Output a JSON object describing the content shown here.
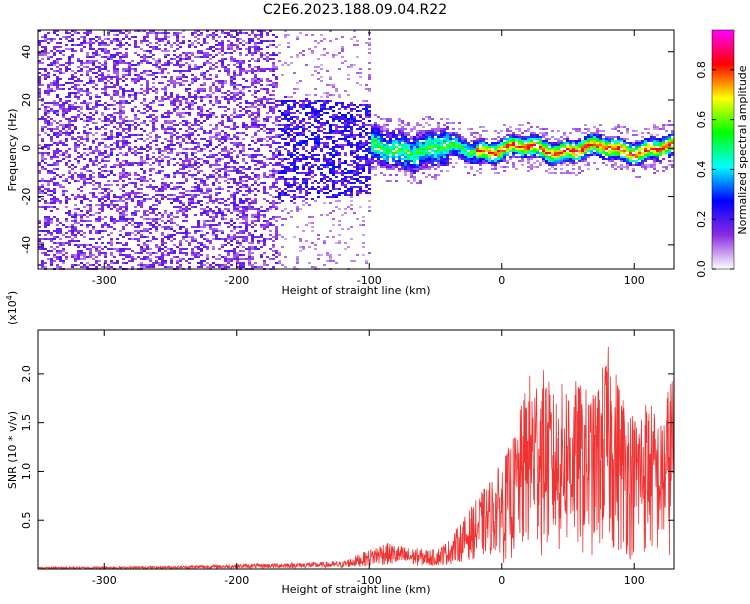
{
  "title": "C2E6.2023.188.09.04.R22",
  "chart_data": [
    {
      "type": "heatmap",
      "title": "C2E6.2023.188.09.04.R22",
      "xlabel": "Height of straight line (km)",
      "ylabel": "Frequency (Hz)",
      "xlim": [
        -350,
        130
      ],
      "ylim": [
        -50,
        49
      ],
      "xticks": [
        -300,
        -200,
        -100,
        0,
        100
      ],
      "yticks": [
        -40,
        -20,
        0,
        20,
        40
      ],
      "grid": false,
      "colorbar": {
        "label": "Normalized spectral amplitude",
        "range": [
          0.0,
          0.96
        ],
        "ticks": [
          0.0,
          0.2,
          0.4,
          0.6,
          0.8
        ],
        "tick_labels": [
          "0.0",
          "0.2",
          "0.4",
          "0.6",
          "0.8"
        ],
        "colormap": [
          "#ffffff",
          "#8a2be2",
          "#0000ff",
          "#00ffff",
          "#00ff00",
          "#ffff00",
          "#ff0000",
          "#ff00ff"
        ]
      },
      "regions": [
        {
          "x_range": [
            -350,
            -170
          ],
          "freq_range": [
            -50,
            49
          ],
          "amplitude": 0.1,
          "description_key": "broadband noise"
        },
        {
          "x_range": [
            -170,
            -100
          ],
          "freq_range": [
            -20,
            20
          ],
          "amplitude": 0.15
        },
        {
          "x_range": [
            -100,
            130
          ],
          "freq_center": 0,
          "freq_halfwidth": 5,
          "amplitude_peak": 0.9
        }
      ]
    },
    {
      "type": "line",
      "xlabel": "Height of straight line (km)",
      "ylabel": "SNR (10 * v/v)",
      "y_multiplier_label": "(x10",
      "y_multiplier_exp": "4",
      "y_multiplier_close": ")",
      "xlim": [
        -350,
        130
      ],
      "ylim": [
        0,
        2.45
      ],
      "xticks": [
        -300,
        -200,
        -100,
        0,
        100
      ],
      "yticks": [
        0.5,
        1.0,
        1.5,
        2.0
      ],
      "ytick_labels": [
        "0.5",
        "1.0",
        "1.5",
        "2.0"
      ],
      "grid": false,
      "series": [
        {
          "color": "#ee3333",
          "envelope_x": [
            -350,
            -250,
            -170,
            -120,
            -100,
            -90,
            -70,
            -50,
            -40,
            -30,
            -20,
            -10,
            0,
            10,
            20,
            30,
            40,
            50,
            60,
            70,
            80,
            90,
            100,
            110,
            120,
            130
          ],
          "envelope_y": [
            0.02,
            0.03,
            0.06,
            0.08,
            0.2,
            0.28,
            0.22,
            0.2,
            0.3,
            0.5,
            0.7,
            0.9,
            1.1,
            1.4,
            2.0,
            2.1,
            1.8,
            2.0,
            1.9,
            1.8,
            2.3,
            1.9,
            1.6,
            1.8,
            1.5,
            2.2
          ]
        }
      ]
    }
  ]
}
